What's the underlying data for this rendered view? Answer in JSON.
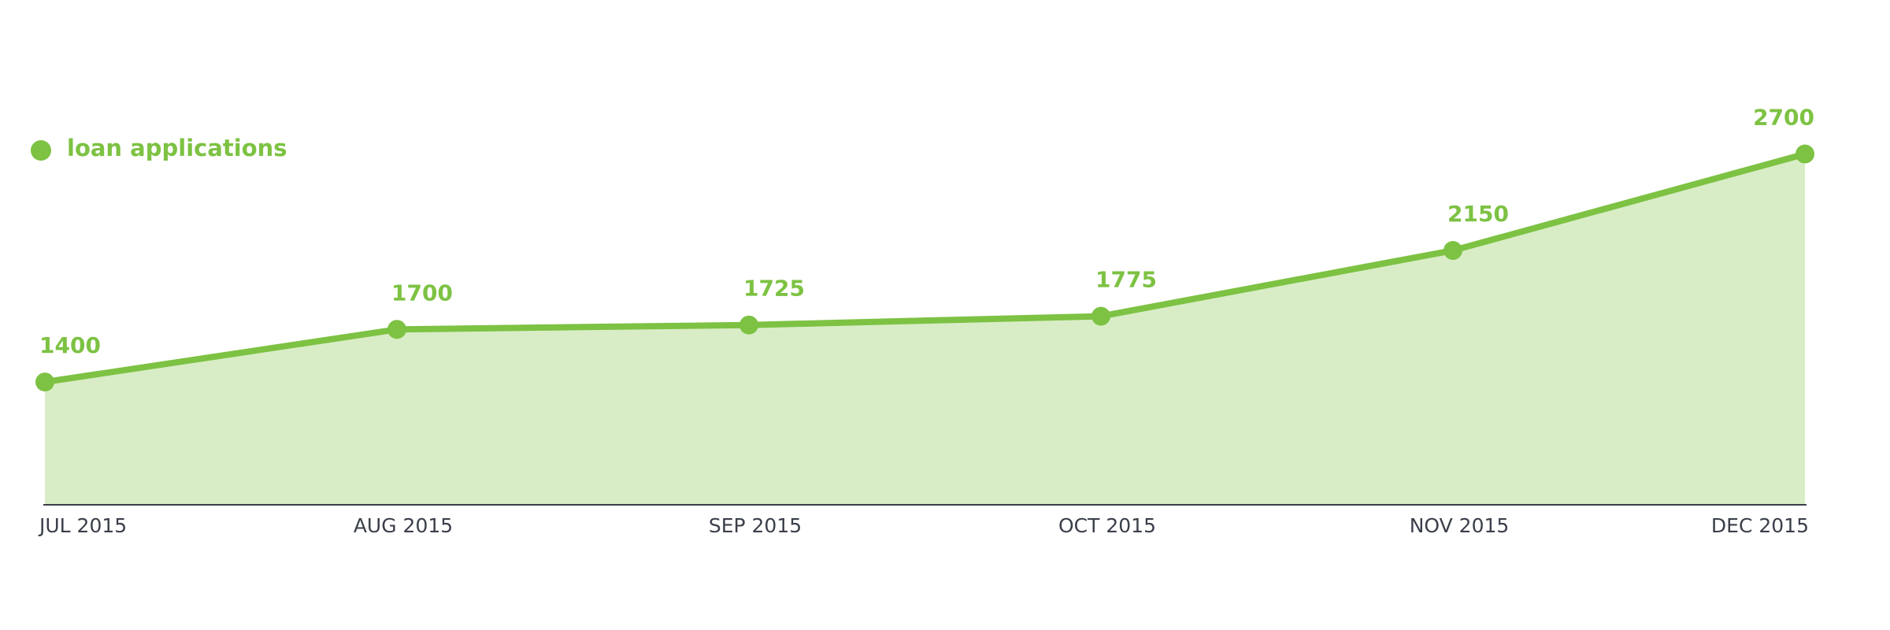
{
  "chart_data": {
    "type": "area",
    "categories": [
      "JUL 2015",
      "AUG 2015",
      "SEP 2015",
      "OCT 2015",
      "NOV 2015",
      "DEC 2015"
    ],
    "series": [
      {
        "name": "loan applications",
        "color": "#7dc243",
        "values": [
          1400,
          1700,
          1725,
          1775,
          2150,
          2700
        ]
      }
    ],
    "ylim": [
      700,
      2900
    ],
    "legend": "top-left"
  }
}
